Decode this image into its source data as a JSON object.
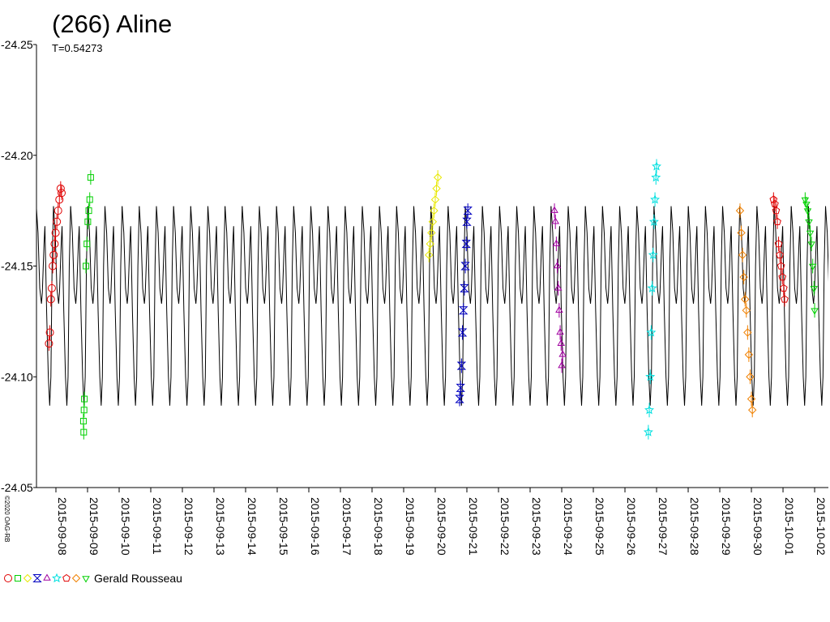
{
  "chart_data": {
    "type": "lightcurve",
    "title": "(266) Aline",
    "subtitle": {
      "value": 0.54273,
      "label": "T=0.54273"
    },
    "observer": "Gerald Rousseau",
    "copyright": "©2020 OAG-RB",
    "xlim": [
      -0.615,
      24.435
    ],
    "xticks": [
      {
        "value": 0,
        "label": "2015-09-08"
      },
      {
        "value": 1,
        "label": "2015-09-09"
      },
      {
        "value": 2,
        "label": "2015-09-10"
      },
      {
        "value": 3,
        "label": "2015-09-11"
      },
      {
        "value": 4,
        "label": "2015-09-12"
      },
      {
        "value": 5,
        "label": "2015-09-13"
      },
      {
        "value": 6,
        "label": "2015-09-14"
      },
      {
        "value": 7,
        "label": "2015-09-15"
      },
      {
        "value": 8,
        "label": "2015-09-16"
      },
      {
        "value": 9,
        "label": "2015-09-17"
      },
      {
        "value": 10,
        "label": "2015-09-18"
      },
      {
        "value": 11,
        "label": "2015-09-19"
      },
      {
        "value": 12,
        "label": "2015-09-20"
      },
      {
        "value": 13,
        "label": "2015-09-21"
      },
      {
        "value": 14,
        "label": "2015-09-22"
      },
      {
        "value": 15,
        "label": "2015-09-23"
      },
      {
        "value": 16,
        "label": "2015-09-24"
      },
      {
        "value": 17,
        "label": "2015-09-25"
      },
      {
        "value": 18,
        "label": "2015-09-26"
      },
      {
        "value": 19,
        "label": "2015-09-27"
      },
      {
        "value": 20,
        "label": "2015-09-28"
      },
      {
        "value": 21,
        "label": "2015-09-29"
      },
      {
        "value": 22,
        "label": "2015-09-30"
      },
      {
        "value": 23,
        "label": "2015-10-01"
      },
      {
        "value": 24,
        "label": "2015-10-02"
      }
    ],
    "ylim": [
      -24.05,
      -24.25
    ],
    "yticks": [
      -24.25,
      {
        "value": -24.2,
        "label": "-24.20"
      },
      -24.15,
      {
        "value": -24.1,
        "label": "-24.10"
      },
      -24.05
    ],
    "model": {
      "color": "#000000",
      "x": [
        -0.62,
        -0.5657,
        -0.5115,
        -0.4572,
        -0.43,
        -0.3758,
        -0.3486,
        -0.2944,
        -0.2401,
        -0.1967,
        -0.1587,
        -0.1207,
        -0.0773
      ],
      "values": [
        -24.177,
        -24.165,
        -24.14,
        -24.133,
        -24.138,
        -24.16,
        -24.168,
        -24.13,
        -24.1,
        -24.087,
        -24.1,
        -24.15,
        -24.177
      ]
    },
    "series": [
      {
        "color": "#e00000",
        "marker": "circle",
        "x": [
          -0.22,
          -0.19,
          -0.16,
          -0.13,
          -0.1,
          -0.07,
          -0.04,
          -0.01,
          0.03,
          0.07,
          0.11,
          0.15,
          0.18
        ],
        "values": [
          -24.115,
          -24.12,
          -24.135,
          -24.14,
          -24.15,
          -24.155,
          -24.16,
          -24.165,
          -24.17,
          -24.175,
          -24.18,
          -24.185,
          -24.183
        ]
      },
      {
        "color": "#00d000",
        "marker": "square",
        "x": [
          0.87,
          0.88,
          0.89,
          0.9,
          0.95,
          0.98,
          1.01,
          1.04,
          1.07,
          1.1
        ],
        "values": [
          -24.08,
          -24.075,
          -24.085,
          -24.09,
          -24.15,
          -24.16,
          -24.17,
          -24.175,
          -24.18,
          -24.19
        ]
      },
      {
        "color": "#e8e800",
        "marker": "diamond",
        "x": [
          11.8,
          11.84,
          11.88,
          11.92,
          11.96,
          12.0,
          12.04,
          12.08
        ],
        "values": [
          -24.155,
          -24.16,
          -24.165,
          -24.17,
          -24.175,
          -24.18,
          -24.185,
          -24.19
        ]
      },
      {
        "color": "#0000c0",
        "marker": "bowtie",
        "x": [
          12.77,
          12.8,
          12.83,
          12.86,
          12.89,
          12.92,
          12.95,
          12.98,
          13.0,
          13.03
        ],
        "values": [
          -24.09,
          -24.095,
          -24.105,
          -24.12,
          -24.13,
          -24.14,
          -24.15,
          -24.16,
          -24.17,
          -24.175
        ]
      },
      {
        "color": "#a000a0",
        "marker": "triangle",
        "x": [
          15.77,
          15.8,
          15.83,
          15.86,
          15.89,
          15.92,
          15.95,
          15.98,
          16.0,
          16.03
        ],
        "values": [
          -24.175,
          -24.17,
          -24.16,
          -24.15,
          -24.14,
          -24.13,
          -24.12,
          -24.115,
          -24.105,
          -24.11
        ]
      },
      {
        "color": "#00e0e0",
        "marker": "star",
        "x": [
          18.74,
          18.77,
          18.8,
          18.83,
          18.86,
          18.89,
          18.92,
          18.95,
          18.98,
          19.0
        ],
        "values": [
          -24.075,
          -24.085,
          -24.1,
          -24.12,
          -24.14,
          -24.155,
          -24.17,
          -24.18,
          -24.19,
          -24.195
        ]
      },
      {
        "color": "#e00000",
        "marker": "pentagon",
        "x": [
          22.7,
          22.74,
          22.78,
          22.82,
          22.86,
          22.9,
          22.94,
          22.98,
          23.02,
          23.05
        ],
        "values": [
          -24.18,
          -24.178,
          -24.175,
          -24.17,
          -24.16,
          -24.155,
          -24.15,
          -24.145,
          -24.14,
          -24.135
        ]
      },
      {
        "color": "#f08000",
        "marker": "diamond",
        "x": [
          21.64,
          21.68,
          21.72,
          21.76,
          21.8,
          21.84,
          21.88,
          21.92,
          21.96,
          22.0,
          22.03
        ],
        "values": [
          -24.175,
          -24.165,
          -24.155,
          -24.145,
          -24.135,
          -24.13,
          -24.12,
          -24.11,
          -24.1,
          -24.09,
          -24.085
        ]
      },
      {
        "color": "#00d000",
        "marker": "triangle-down",
        "x": [
          23.7,
          23.74,
          23.78,
          23.82,
          23.86,
          23.9,
          23.94,
          23.98,
          24.0
        ],
        "values": [
          -24.18,
          -24.178,
          -24.175,
          -24.17,
          -24.165,
          -24.16,
          -24.15,
          -24.14,
          -24.13
        ]
      }
    ]
  }
}
